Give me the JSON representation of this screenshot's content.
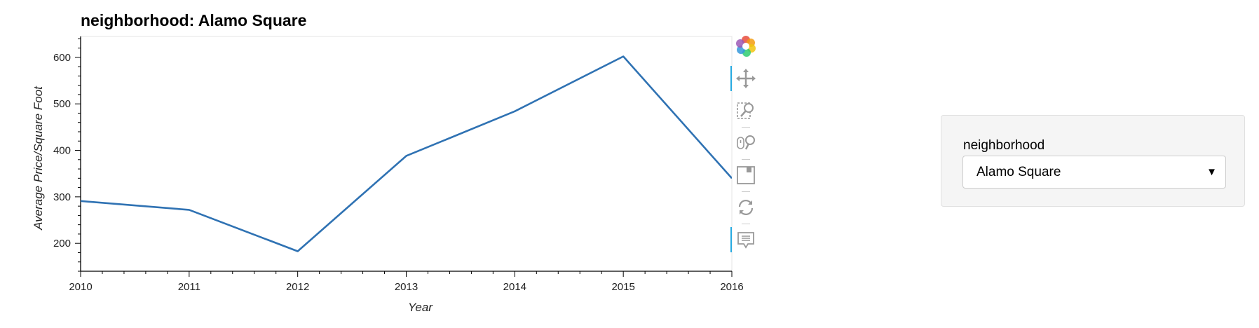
{
  "title": "neighborhood: Alamo Square",
  "chart_data": {
    "type": "line",
    "title": "neighborhood: Alamo Square",
    "xlabel": "Year",
    "ylabel": "Average Price/Square Foot",
    "x": [
      2010,
      2011,
      2012,
      2013,
      2014,
      2015,
      2016
    ],
    "values": [
      291,
      272,
      183,
      388,
      484,
      602,
      340
    ],
    "xlim": [
      2010,
      2016
    ],
    "ylim": [
      140,
      645
    ],
    "x_ticks": [
      2010,
      2011,
      2012,
      2013,
      2014,
      2015,
      2016
    ],
    "y_ticks": [
      200,
      300,
      400,
      500,
      600
    ],
    "line_color": "#2f72b3",
    "grid": false,
    "legend": "none"
  },
  "toolbar": {
    "tools": [
      {
        "name": "bokeh-logo-icon",
        "active": false
      },
      {
        "name": "pan-icon",
        "active": true
      },
      {
        "name": "box-zoom-icon",
        "active": false
      },
      {
        "name": "wheel-zoom-icon",
        "active": false
      },
      {
        "name": "save-icon",
        "active": false
      },
      {
        "name": "reset-icon",
        "active": false
      },
      {
        "name": "hover-icon",
        "active": true
      }
    ]
  },
  "widget": {
    "label": "neighborhood",
    "selected": "Alamo Square",
    "arrow": "▼"
  }
}
